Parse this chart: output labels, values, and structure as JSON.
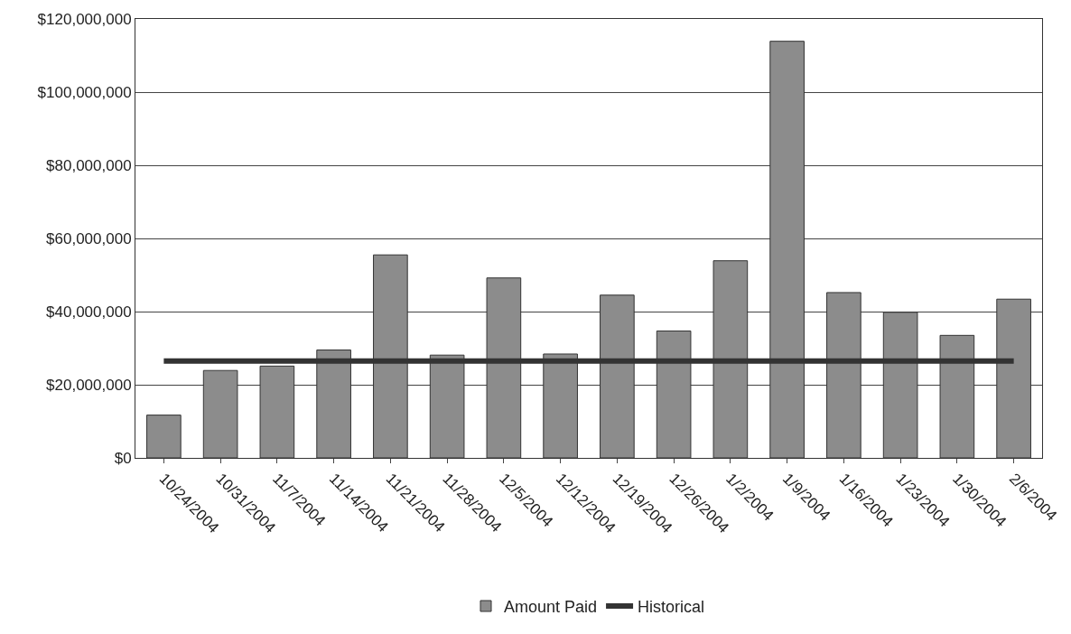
{
  "chart_data": {
    "type": "bar",
    "categories": [
      "10/24/2004",
      "10/31/2004",
      "11/7/2004",
      "11/14/2004",
      "11/21/2004",
      "11/28/2004",
      "12/5/2004",
      "12/12/2004",
      "12/19/2004",
      "12/26/2004",
      "1/2/2004",
      "1/9/2004",
      "1/16/2004",
      "1/23/2004",
      "1/30/2004",
      "2/6/2004"
    ],
    "series": [
      {
        "name": "Amount Paid",
        "color": "#8c8c8c",
        "values": [
          11700000,
          23900000,
          25100000,
          29500000,
          55500000,
          28100000,
          49200000,
          28400000,
          44500000,
          34700000,
          53900000,
          113900000,
          45200000,
          39800000,
          33500000,
          43400000
        ]
      },
      {
        "name": "Historical",
        "type": "line",
        "color": "#333333",
        "values": [
          26500000,
          26500000,
          26500000,
          26500000,
          26500000,
          26500000,
          26500000,
          26500000,
          26500000,
          26500000,
          26500000,
          26500000,
          26500000,
          26500000,
          26500000,
          26500000
        ]
      }
    ],
    "ylim": [
      0,
      120000000
    ],
    "yticks": [
      {
        "value": 0,
        "label": "$0"
      },
      {
        "value": 20000000,
        "label": "$20,000,000"
      },
      {
        "value": 40000000,
        "label": "$40,000,000"
      },
      {
        "value": 60000000,
        "label": "$60,000,000"
      },
      {
        "value": 80000000,
        "label": "$80,000,000"
      },
      {
        "value": 100000000,
        "label": "$100,000,000"
      },
      {
        "value": 120000000,
        "label": "$120,000,000"
      }
    ],
    "grid": "y",
    "legend": "bottom",
    "marker": "none",
    "line_style": "solid"
  }
}
